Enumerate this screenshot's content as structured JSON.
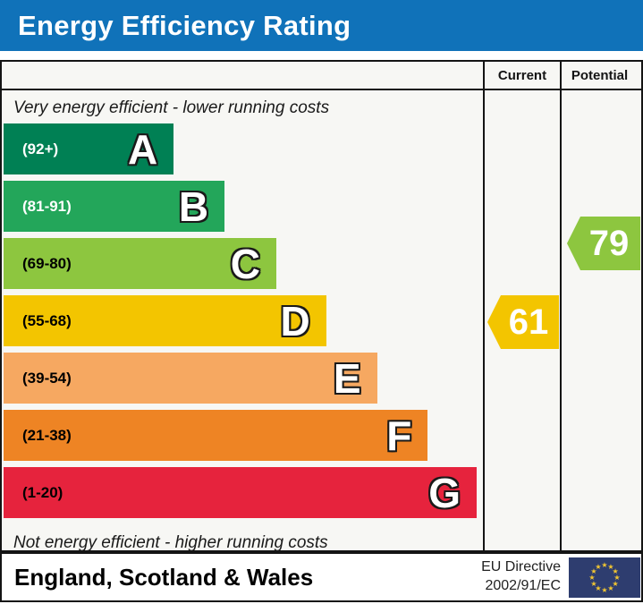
{
  "title": "Energy Efficiency Rating",
  "columns": {
    "current": "Current",
    "potential": "Potential"
  },
  "captions": {
    "top": "Very energy efficient - lower running costs",
    "bottom": "Not energy efficient - higher running costs"
  },
  "bands": [
    {
      "letter": "A",
      "range": "(92+)",
      "color": "#008054",
      "label_color": "#ffffff",
      "width_pct": 35.5
    },
    {
      "letter": "B",
      "range": "(81-91)",
      "color": "#23a65a",
      "label_color": "#ffffff",
      "width_pct": 46.1
    },
    {
      "letter": "C",
      "range": "(69-80)",
      "color": "#8dc63f",
      "label_color": "#000000",
      "width_pct": 56.9
    },
    {
      "letter": "D",
      "range": "(55-68)",
      "color": "#f3c500",
      "label_color": "#000000",
      "width_pct": 67.3
    },
    {
      "letter": "E",
      "range": "(39-54)",
      "color": "#f6a861",
      "label_color": "#000000",
      "width_pct": 77.9
    },
    {
      "letter": "F",
      "range": "(21-38)",
      "color": "#ee8424",
      "label_color": "#000000",
      "width_pct": 88.5
    },
    {
      "letter": "G",
      "range": "(1-20)",
      "color": "#e6233d",
      "label_color": "#000000",
      "width_pct": 98.7
    }
  ],
  "ratings": {
    "current": {
      "value": "61",
      "color": "#f3c500",
      "band": "D"
    },
    "potential": {
      "value": "79",
      "color": "#8dc63f",
      "band": "C"
    }
  },
  "footer": {
    "region": "England, Scotland & Wales",
    "directive_line1": "EU Directive",
    "directive_line2": "2002/91/EC"
  },
  "flag_colors": {
    "field": "#2e3d6f",
    "stars": "#f3c631"
  },
  "theme": {
    "titlebar": "#1072b9",
    "border": "#141414",
    "panel_bg": "#f7f7f4"
  },
  "chart_data": {
    "type": "bar",
    "title": "Energy Efficiency Rating",
    "categories": [
      "A",
      "B",
      "C",
      "D",
      "E",
      "F",
      "G"
    ],
    "ranges": [
      "92+",
      "81-91",
      "69-80",
      "55-68",
      "39-54",
      "21-38",
      "1-20"
    ],
    "bar_colors": [
      "#008054",
      "#23a65a",
      "#8dc63f",
      "#f3c500",
      "#f6a861",
      "#ee8424",
      "#e6233d"
    ],
    "bar_relative_lengths": [
      35.5,
      46.1,
      56.9,
      67.3,
      77.9,
      88.5,
      98.7
    ],
    "current_rating": 61,
    "current_band": "D",
    "potential_rating": 79,
    "potential_band": "C",
    "annotations": [
      "Very energy efficient - lower running costs",
      "Not energy efficient - higher running costs"
    ],
    "legend_position": "none",
    "grid": false
  }
}
